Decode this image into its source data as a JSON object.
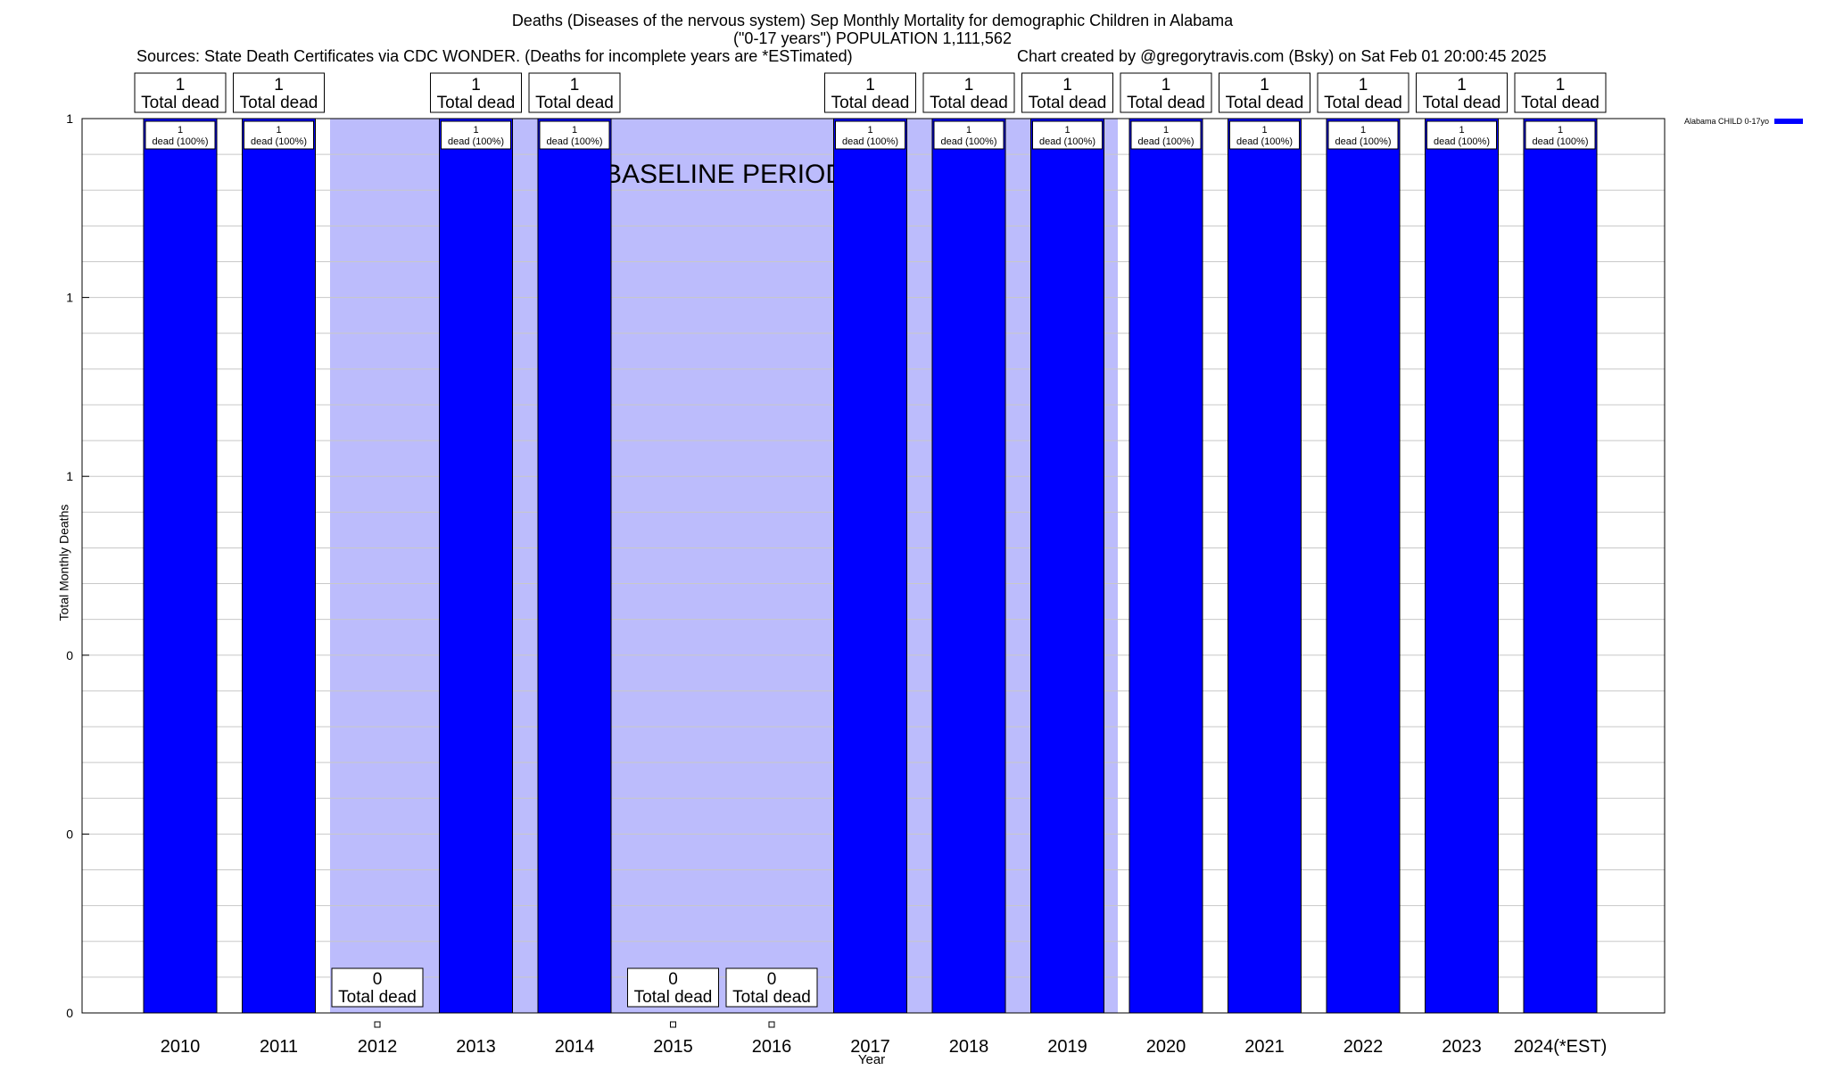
{
  "header": {
    "title_line1": "Deaths (Diseases of the nervous system) Sep Monthly Mortality for demographic Children in Alabama",
    "title_line2": "(\"0-17 years\") POPULATION 1,111,562",
    "sources": "Sources: State Death Certificates via CDC WONDER. (Deaths for incomplete years are *ESTimated)",
    "credit": "Chart created by @gregorytravis.com (Bsky) on Sat Feb 01 20:00:45 2025"
  },
  "legend": {
    "label": "Alabama CHILD 0-17yo",
    "color": "#0000ff"
  },
  "chart_data": {
    "type": "bar",
    "title": "Deaths (Diseases of the nervous system) Sep Monthly Mortality for demographic Children in Alabama",
    "xlabel": "Year",
    "ylabel": "Total Monthly Deaths",
    "categories": [
      "2010",
      "2011",
      "2012",
      "2013",
      "2014",
      "2015",
      "2016",
      "2017",
      "2018",
      "2019",
      "2020",
      "2021",
      "2022",
      "2023",
      "2024(*EST)"
    ],
    "series": [
      {
        "name": "Alabama CHILD 0-17yo",
        "color": "#0000ff",
        "values": [
          1,
          1,
          0,
          1,
          1,
          0,
          0,
          1,
          1,
          1,
          1,
          1,
          1,
          1,
          1
        ]
      }
    ],
    "total_labels": [
      "1",
      "1",
      "0",
      "1",
      "1",
      "0",
      "0",
      "1",
      "1",
      "1",
      "1",
      "1",
      "1",
      "1",
      "1"
    ],
    "total_caption": "Total dead",
    "inner_labels": [
      "1",
      "1",
      "",
      "1",
      "1",
      "",
      "",
      "1",
      "1",
      "1",
      "1",
      "1",
      "1",
      "1",
      "1"
    ],
    "inner_caption": "dead (100%)",
    "ylim": [
      0,
      1
    ],
    "yticks": [
      {
        "value": 0,
        "label": "0"
      },
      {
        "value": 0.2,
        "label": "0"
      },
      {
        "value": 0.4,
        "label": "0"
      },
      {
        "value": 0.6,
        "label": "1"
      },
      {
        "value": 0.8,
        "label": "1"
      },
      {
        "value": 1,
        "label": "1"
      }
    ],
    "baseline_label": "BASELINE PERIOD",
    "baseline_color": "#bcbcfc",
    "grid": true,
    "legend_position": "top-right"
  }
}
